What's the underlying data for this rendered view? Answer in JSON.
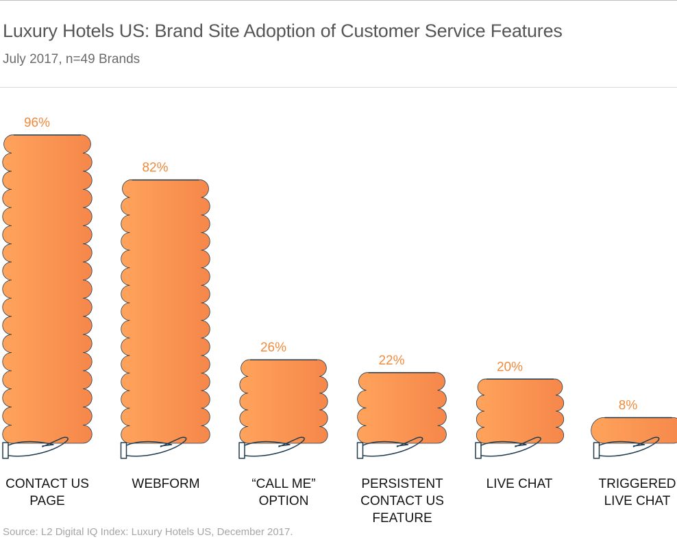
{
  "title": "Luxury Hotels US: Brand Site Adoption of Customer Service Features",
  "subtitle": "July 2017, n=49 Brands",
  "source": "Source: L2 Digital IQ Index: Luxury Hotels US, December 2017.",
  "colors": {
    "bar_start": "#ffa35c",
    "bar_end": "#f5874a",
    "label": "#f08a3c",
    "outline": "#1f3a4d"
  },
  "chart_data": {
    "type": "bar",
    "categories": [
      [
        "CONTACT US",
        "PAGE"
      ],
      [
        "WEBFORM"
      ],
      [
        "“CALL ME”",
        "OPTION"
      ],
      [
        "PERSISTENT",
        "CONTACT US FEATURE"
      ],
      [
        "LIVE CHAT"
      ],
      [
        "TRIGGERED",
        "LIVE CHAT"
      ]
    ],
    "values": [
      96,
      82,
      26,
      22,
      20,
      8
    ],
    "value_labels": [
      "96%",
      "82%",
      "26%",
      "22%",
      "20%",
      "8%"
    ],
    "ylim": [
      0,
      100
    ],
    "grid": false,
    "legend": "none"
  }
}
